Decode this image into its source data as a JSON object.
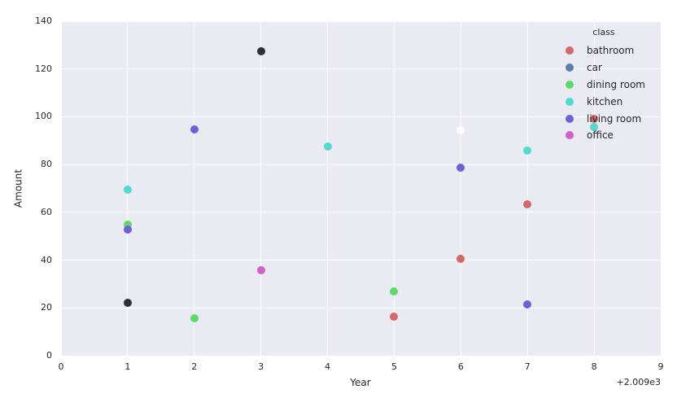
{
  "figure": {
    "background": "#ffffff",
    "plot_background": "#eaeaf2",
    "grid_color": "#ffffff",
    "text_color": "#262626"
  },
  "chart_data": {
    "type": "scatter",
    "title": "",
    "xlabel": "Year",
    "ylabel": "Amount",
    "x_offset_label": "+2.009e3",
    "xlim": [
      0,
      9
    ],
    "ylim": [
      0,
      140
    ],
    "xticks": [
      0,
      1,
      2,
      3,
      4,
      5,
      6,
      7,
      8,
      9
    ],
    "yticks": [
      0,
      20,
      40,
      60,
      80,
      100,
      120,
      140
    ],
    "grid": true,
    "legend": {
      "title": "class",
      "position": "upper right",
      "entries": [
        {
          "label": "bathroom",
          "color": "#d26968"
        },
        {
          "label": "car",
          "color": "#5f7cab"
        },
        {
          "label": "dining room",
          "color": "#5cd968"
        },
        {
          "label": "kitchen",
          "color": "#52d9d1"
        },
        {
          "label": "living room",
          "color": "#7060d8"
        },
        {
          "label": "office",
          "color": "#d35fca"
        }
      ]
    },
    "series": [
      {
        "name": "bathroom",
        "color": "#d26968",
        "in_legend": true,
        "points": [
          [
            5,
            16.5
          ],
          [
            6,
            40.5
          ],
          [
            7,
            63.5
          ],
          [
            8,
            99.0
          ]
        ]
      },
      {
        "name": "car",
        "color": "#5f7cab",
        "in_legend": true,
        "points": []
      },
      {
        "name": "dining room",
        "color": "#5cd968",
        "in_legend": true,
        "points": [
          [
            1,
            54.7
          ],
          [
            2,
            15.8
          ],
          [
            5,
            27.0
          ]
        ]
      },
      {
        "name": "kitchen",
        "color": "#52d9d1",
        "in_legend": true,
        "points": [
          [
            1,
            69.4
          ],
          [
            4,
            87.6
          ],
          [
            7,
            86.0
          ],
          [
            8,
            95.7
          ]
        ]
      },
      {
        "name": "living room",
        "color": "#7060d8",
        "in_legend": true,
        "points": [
          [
            1,
            52.8
          ],
          [
            2,
            94.6
          ],
          [
            6,
            78.8
          ],
          [
            7,
            21.5
          ]
        ]
      },
      {
        "name": "office",
        "color": "#d35fca",
        "in_legend": true,
        "points": [
          [
            3,
            35.9
          ]
        ]
      },
      {
        "name": "unknown_dark",
        "color": "#2e3038",
        "in_legend": false,
        "points": [
          [
            1,
            22.3
          ],
          [
            3,
            127.4
          ]
        ]
      },
      {
        "name": "unknown_white",
        "color": "#fdfdfd",
        "in_legend": false,
        "points": [
          [
            6,
            94.2
          ]
        ]
      }
    ]
  }
}
